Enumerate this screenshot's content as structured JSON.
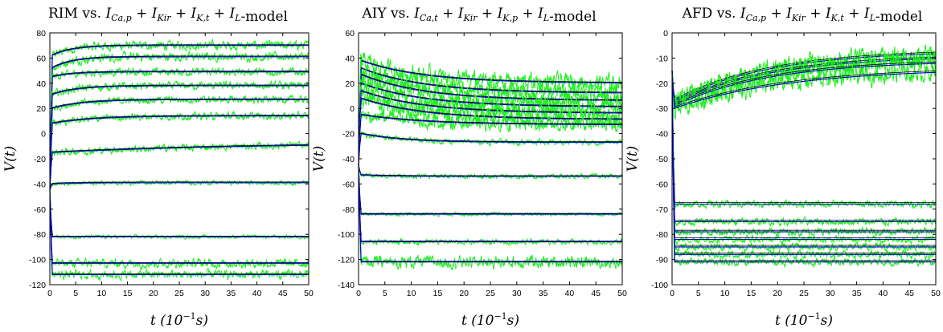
{
  "chart_data": [
    {
      "type": "line",
      "title": "RIM vs. I_{Ca,p} + I_{Kir} + I_{K,t} + I_L-model",
      "title_parts": {
        "cell": "RIM",
        "currents": [
          "I",
          "Ca,p",
          "I",
          "Kir",
          "I",
          "K,t",
          "I",
          "L"
        ],
        "suffix": "-model",
        "vs": "vs."
      },
      "xlabel": "t (10^-1 s)",
      "ylabel": "V(t)",
      "xlim": [
        0,
        50
      ],
      "ylim": [
        -120,
        80
      ],
      "xticks": [
        0,
        5,
        10,
        15,
        20,
        25,
        30,
        35,
        40,
        45,
        50
      ],
      "yticks": [
        -120,
        -100,
        -80,
        -60,
        -40,
        -20,
        0,
        20,
        40,
        60,
        80
      ],
      "series_style": {
        "data": "#22ee22",
        "model": "#0000cc",
        "reference": "#000000"
      },
      "traces": [
        {
          "start": -45,
          "peak": 62,
          "end": 70,
          "tau": 4,
          "noise": 2.5
        },
        {
          "start": -45,
          "peak": 52,
          "end": 61,
          "tau": 4,
          "noise": 2.5
        },
        {
          "start": -45,
          "peak": 45,
          "end": 49,
          "tau": 4,
          "noise": 2.2
        },
        {
          "start": -45,
          "peak": 31,
          "end": 38,
          "tau": 5,
          "noise": 2.2
        },
        {
          "start": -45,
          "peak": 20,
          "end": 27,
          "tau": 6,
          "noise": 2.0
        },
        {
          "start": -45,
          "peak": 8,
          "end": 14,
          "tau": 8,
          "noise": 2.0
        },
        {
          "start": -45,
          "peak": -15,
          "end": -7,
          "tau": 40,
          "noise": 2.0
        },
        {
          "start": -45,
          "peak": -40,
          "end": -39,
          "tau": 5,
          "noise": 1.2
        },
        {
          "start": -45,
          "peak": -82,
          "end": -82,
          "tau": 3,
          "noise": 1.0
        },
        {
          "start": -45,
          "peak": -103,
          "end": -103,
          "tau": 3,
          "noise": 2.5
        },
        {
          "start": -45,
          "peak": -112,
          "end": -112,
          "tau": 3,
          "noise": 2.5
        }
      ]
    },
    {
      "type": "line",
      "title": "AIY vs. I_{Ca,t} + I_{Kir} + I_{K,p} + I_L-model",
      "title_parts": {
        "cell": "AIY",
        "currents": [
          "I",
          "Ca,t",
          "I",
          "Kir",
          "I",
          "K,p",
          "I",
          "L"
        ],
        "suffix": "-model",
        "vs": "vs."
      },
      "xlabel": "t (10^-1 s)",
      "ylabel": "V(t)",
      "xlim": [
        0,
        50
      ],
      "ylim": [
        -140,
        60
      ],
      "xticks": [
        0,
        5,
        10,
        15,
        20,
        25,
        30,
        35,
        40,
        45,
        50
      ],
      "yticks": [
        -140,
        -120,
        -100,
        -80,
        -60,
        -40,
        -20,
        0,
        20,
        40,
        60
      ],
      "series_style": {
        "data": "#22ee22",
        "model": "#0000cc",
        "reference": "#000000"
      },
      "traces": [
        {
          "start": -45,
          "peak": 38,
          "end": 20,
          "tau": 12,
          "noise": 5
        },
        {
          "start": -45,
          "peak": 32,
          "end": 12,
          "tau": 12,
          "noise": 5
        },
        {
          "start": -45,
          "peak": 27,
          "end": 6,
          "tau": 12,
          "noise": 5
        },
        {
          "start": -45,
          "peak": 20,
          "end": 1,
          "tau": 12,
          "noise": 5
        },
        {
          "start": -45,
          "peak": 14,
          "end": -4,
          "tau": 12,
          "noise": 5
        },
        {
          "start": -45,
          "peak": 8,
          "end": -9,
          "tau": 12,
          "noise": 5
        },
        {
          "start": -45,
          "peak": -5,
          "end": -13,
          "tau": 12,
          "noise": 4
        },
        {
          "start": -45,
          "peak": -20,
          "end": -27,
          "tau": 8,
          "noise": 1.5
        },
        {
          "start": -45,
          "peak": -53,
          "end": -54,
          "tau": 5,
          "noise": 1.2
        },
        {
          "start": -45,
          "peak": -84,
          "end": -84,
          "tau": 4,
          "noise": 1.0
        },
        {
          "start": -45,
          "peak": -106,
          "end": -106,
          "tau": 3,
          "noise": 1.5
        },
        {
          "start": -45,
          "peak": -122,
          "end": -122,
          "tau": 3,
          "noise": 3.5
        }
      ]
    },
    {
      "type": "line",
      "title": "AFD vs. I_{Ca,p} + I_{Kir} + I_{K,t} + I_L-model",
      "title_parts": {
        "cell": "AFD",
        "currents": [
          "I",
          "Ca,p",
          "I",
          "Kir",
          "I",
          "K,t",
          "I",
          "L"
        ],
        "suffix": "-model",
        "vs": "vs."
      },
      "xlabel": "t (10^-1 s)",
      "ylabel": "V(t)",
      "xlim": [
        0,
        50
      ],
      "ylim": [
        -100,
        0
      ],
      "xticks": [
        0,
        5,
        10,
        15,
        20,
        25,
        30,
        35,
        40,
        45,
        50
      ],
      "yticks": [
        -100,
        -90,
        -80,
        -70,
        -60,
        -50,
        -40,
        -30,
        -20,
        -10,
        0
      ],
      "series_style": {
        "data": "#22ee22",
        "model": "#0000cc",
        "reference": "#000000"
      },
      "traces": [
        {
          "start": -15,
          "peak": -27,
          "end": -7,
          "tau": 18,
          "noise": 2.5
        },
        {
          "start": -15,
          "peak": -28,
          "end": -9,
          "tau": 18,
          "noise": 2.5
        },
        {
          "start": -15,
          "peak": -29,
          "end": -11,
          "tau": 18,
          "noise": 2.5
        },
        {
          "start": -15,
          "peak": -30,
          "end": -14,
          "tau": 22,
          "noise": 2.5
        },
        {
          "start": -15,
          "peak": -68,
          "end": -68,
          "tau": 2,
          "noise": 1.0
        },
        {
          "start": -15,
          "peak": -75,
          "end": -75,
          "tau": 2,
          "noise": 1.0
        },
        {
          "start": -15,
          "peak": -79,
          "end": -79,
          "tau": 2,
          "noise": 1.0
        },
        {
          "start": -15,
          "peak": -82,
          "end": -82,
          "tau": 2,
          "noise": 1.0
        },
        {
          "start": -15,
          "peak": -85,
          "end": -85,
          "tau": 2,
          "noise": 1.0
        },
        {
          "start": -15,
          "peak": -88,
          "end": -88,
          "tau": 2,
          "noise": 1.0
        },
        {
          "start": -15,
          "peak": -91,
          "end": -91,
          "tau": 2,
          "noise": 1.0
        }
      ]
    }
  ]
}
